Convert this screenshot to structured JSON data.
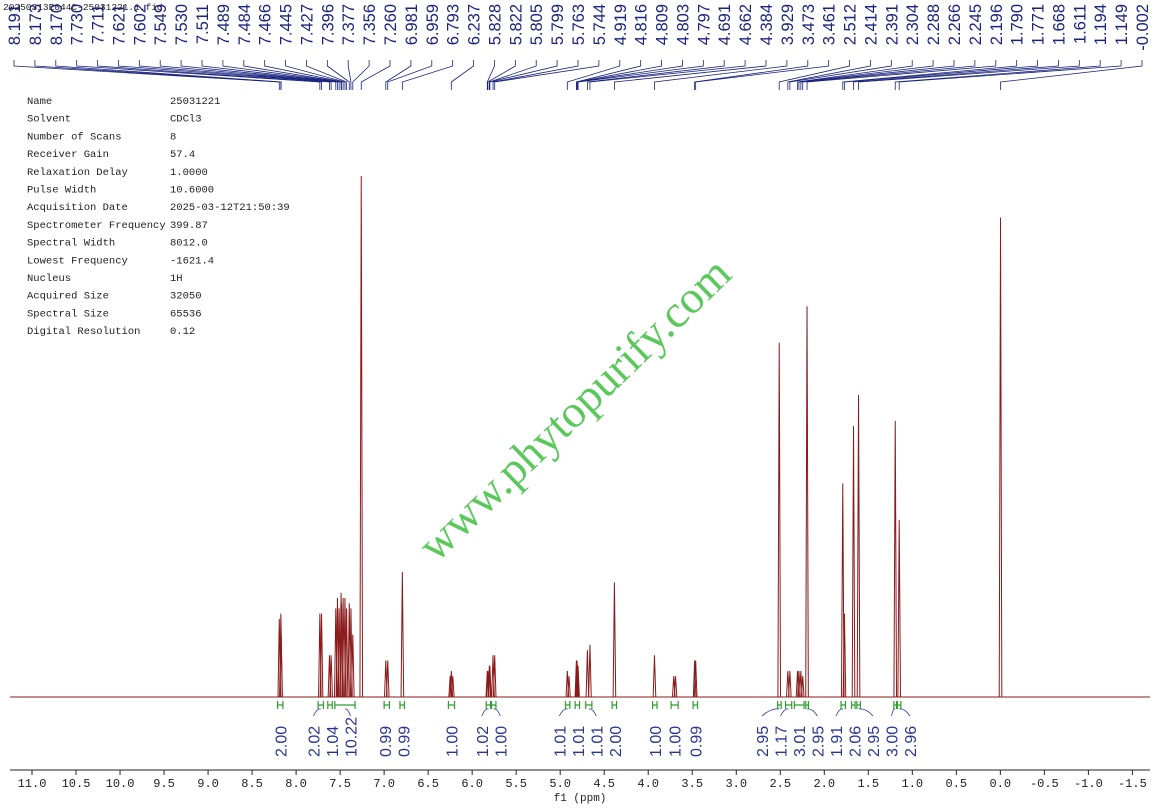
{
  "chart_data": {
    "type": "nmr",
    "file_name": "20250313E044C-25031221.1.fid",
    "x_label": "f1 (ppm)",
    "watermark": "www.phytopurify.com",
    "color": "#8b1a1a",
    "integral_color": "#2e9e2e",
    "xlim": [
      11.25,
      -1.7
    ],
    "ylim": [
      0,
      100
    ],
    "xticks": [
      {
        "value": 11,
        "label": "11.0"
      },
      10.5,
      {
        "value": 10,
        "label": "10.0"
      },
      9.5,
      {
        "value": 9,
        "label": "9.0"
      },
      8.5,
      {
        "value": 8,
        "label": "8.0"
      },
      7.5,
      {
        "value": 7,
        "label": "7.0"
      },
      6.5,
      {
        "value": 6,
        "label": "6.0"
      },
      5.5,
      {
        "value": 5,
        "label": "5.0"
      },
      4.5,
      {
        "value": 4,
        "label": "4.0"
      },
      3.5,
      {
        "value": 3,
        "label": "3.0"
      },
      2.5,
      {
        "value": 2,
        "label": "2.0"
      },
      1.5,
      {
        "value": 1,
        "label": "1.0"
      },
      0.5,
      {
        "value": 0,
        "label": "0.0"
      },
      -0.5,
      {
        "value": -1,
        "label": "-1.0"
      },
      -1.5
    ],
    "parameters": [
      [
        "Name",
        "25031221"
      ],
      [
        "Solvent",
        "CDCl3"
      ],
      [
        "Number of Scans",
        "8"
      ],
      [
        "Receiver Gain",
        "57.4"
      ],
      [
        "Relaxation Delay",
        "1.0000"
      ],
      [
        "Pulse Width",
        "10.6000"
      ],
      [
        "Acquisition Date",
        "2025-03-12T21:50:39"
      ],
      [
        "Spectrometer Frequency",
        "399.87"
      ],
      [
        "Spectral Width",
        "8012.0"
      ],
      [
        "Lowest Frequency",
        "-1621.4"
      ],
      [
        "Nucleus",
        "1H"
      ],
      [
        "Acquired Size",
        "32050"
      ],
      [
        "Spectral Size",
        "65536"
      ],
      [
        "Digital Resolution",
        "0.12"
      ]
    ],
    "peak_labels": [
      8.191,
      8.173,
      {
        "value": 8.17,
        "label": "8.170"
      },
      {
        "value": 7.73,
        "label": "7.730"
      },
      7.711,
      7.621,
      7.602,
      7.549,
      {
        "value": 7.53,
        "label": "7.530"
      },
      7.511,
      7.489,
      7.484,
      7.466,
      7.445,
      7.427,
      7.396,
      7.377,
      7.356,
      {
        "value": 7.26,
        "label": "7.260"
      },
      6.981,
      6.959,
      6.793,
      6.237,
      5.828,
      5.822,
      5.805,
      5.799,
      5.763,
      5.744,
      4.919,
      4.816,
      4.809,
      4.803,
      4.797,
      4.691,
      4.662,
      4.384,
      3.929,
      3.473,
      3.461,
      2.512,
      2.414,
      2.391,
      2.304,
      2.288,
      2.266,
      2.245,
      2.196,
      {
        "value": 1.79,
        "label": "1.790"
      },
      1.771,
      1.668,
      1.611,
      1.194,
      1.149,
      -0.002
    ],
    "signals": [
      {
        "ppm": 8.191,
        "intensity": 15
      },
      {
        "ppm": 8.173,
        "intensity": 16
      },
      {
        "ppm": 8.17,
        "intensity": 12
      },
      {
        "ppm": 7.73,
        "intensity": 16
      },
      {
        "ppm": 7.711,
        "intensity": 16
      },
      {
        "ppm": 7.621,
        "intensity": 8
      },
      {
        "ppm": 7.602,
        "intensity": 8
      },
      {
        "ppm": 7.549,
        "intensity": 17
      },
      {
        "ppm": 7.53,
        "intensity": 19
      },
      {
        "ppm": 7.511,
        "intensity": 17
      },
      {
        "ppm": 7.489,
        "intensity": 20
      },
      {
        "ppm": 7.484,
        "intensity": 18
      },
      {
        "ppm": 7.466,
        "intensity": 19
      },
      {
        "ppm": 7.445,
        "intensity": 19
      },
      {
        "ppm": 7.427,
        "intensity": 17
      },
      {
        "ppm": 7.396,
        "intensity": 18
      },
      {
        "ppm": 7.377,
        "intensity": 17
      },
      {
        "ppm": 7.356,
        "intensity": 12
      },
      {
        "ppm": 7.26,
        "intensity": 100
      },
      {
        "ppm": 6.981,
        "intensity": 7
      },
      {
        "ppm": 6.959,
        "intensity": 7
      },
      {
        "ppm": 6.793,
        "intensity": 24
      },
      {
        "ppm": 6.25,
        "intensity": 4
      },
      {
        "ppm": 6.237,
        "intensity": 5
      },
      {
        "ppm": 6.22,
        "intensity": 4
      },
      {
        "ppm": 5.828,
        "intensity": 5
      },
      {
        "ppm": 5.822,
        "intensity": 5
      },
      {
        "ppm": 5.805,
        "intensity": 6
      },
      {
        "ppm": 5.799,
        "intensity": 6
      },
      {
        "ppm": 5.763,
        "intensity": 8
      },
      {
        "ppm": 5.744,
        "intensity": 8
      },
      {
        "ppm": 4.919,
        "intensity": 5
      },
      {
        "ppm": 4.9,
        "intensity": 4
      },
      {
        "ppm": 4.816,
        "intensity": 7
      },
      {
        "ppm": 4.809,
        "intensity": 7
      },
      {
        "ppm": 4.803,
        "intensity": 6
      },
      {
        "ppm": 4.797,
        "intensity": 6
      },
      {
        "ppm": 4.691,
        "intensity": 9
      },
      {
        "ppm": 4.662,
        "intensity": 10
      },
      {
        "ppm": 4.384,
        "intensity": 22
      },
      {
        "ppm": 3.929,
        "intensity": 8
      },
      {
        "ppm": 3.71,
        "intensity": 4
      },
      {
        "ppm": 3.69,
        "intensity": 4
      },
      {
        "ppm": 3.473,
        "intensity": 7
      },
      {
        "ppm": 3.461,
        "intensity": 7
      },
      {
        "ppm": 2.512,
        "intensity": 68
      },
      {
        "ppm": 2.414,
        "intensity": 5
      },
      {
        "ppm": 2.391,
        "intensity": 5
      },
      {
        "ppm": 2.304,
        "intensity": 5
      },
      {
        "ppm": 2.288,
        "intensity": 5
      },
      {
        "ppm": 2.266,
        "intensity": 5
      },
      {
        "ppm": 2.245,
        "intensity": 4
      },
      {
        "ppm": 2.196,
        "intensity": 75
      },
      {
        "ppm": 1.79,
        "intensity": 41
      },
      {
        "ppm": 1.771,
        "intensity": 16
      },
      {
        "ppm": 1.668,
        "intensity": 52
      },
      {
        "ppm": 1.611,
        "intensity": 58
      },
      {
        "ppm": 1.194,
        "intensity": 53
      },
      {
        "ppm": 1.149,
        "intensity": 34
      },
      {
        "ppm": -0.002,
        "intensity": 92
      }
    ],
    "integrals": [
      {
        "range": [
          8.21,
          8.15
        ],
        "value": 2,
        "label": "2.00"
      },
      {
        "range": [
          7.75,
          7.69
        ],
        "value": 2.02,
        "label": "2.02"
      },
      {
        "range": [
          7.64,
          7.59
        ],
        "value": 1.04,
        "label": "1.04"
      },
      {
        "range": [
          7.56,
          7.33
        ],
        "value": 10.22,
        "label": "10.22"
      },
      {
        "range": [
          7.0,
          6.94
        ],
        "value": 0.99,
        "label": "0.99"
      },
      {
        "range": [
          6.82,
          6.77
        ],
        "value": 0.99,
        "label": "0.99"
      },
      {
        "range": [
          6.27,
          6.2
        ],
        "value": 1,
        "label": "1.00"
      },
      {
        "range": [
          5.84,
          5.79
        ],
        "value": 1.02,
        "label": "1.02"
      },
      {
        "range": [
          5.78,
          5.73
        ],
        "value": 1,
        "label": "1.00"
      },
      {
        "range": [
          4.94,
          4.89
        ],
        "value": 1.01,
        "label": "1.01"
      },
      {
        "range": [
          4.83,
          4.78
        ],
        "value": 1.01,
        "label": "1.01"
      },
      {
        "range": [
          4.71,
          4.64
        ],
        "value": 1.01,
        "label": "1.01"
      },
      {
        "range": [
          4.41,
          4.36
        ],
        "value": 2,
        "label": "2.00"
      },
      {
        "range": [
          3.95,
          3.9
        ],
        "value": 1,
        "label": "1.00"
      },
      {
        "range": [
          3.74,
          3.66
        ],
        "value": 1,
        "label": "1.00"
      },
      {
        "range": [
          3.49,
          3.44
        ],
        "value": 0.99,
        "label": "0.99"
      },
      {
        "range": [
          2.53,
          2.49
        ],
        "value": 2.95,
        "label": "2.95"
      },
      {
        "range": [
          2.44,
          2.37
        ],
        "value": 1.17,
        "label": "1.17"
      },
      {
        "range": [
          2.34,
          2.23
        ],
        "value": 3.01,
        "label": "3.01"
      },
      {
        "range": [
          2.21,
          2.18
        ],
        "value": 2.95,
        "label": "2.95"
      },
      {
        "range": [
          1.81,
          1.76
        ],
        "value": 1.91,
        "label": "1.91"
      },
      {
        "range": [
          1.69,
          1.65
        ],
        "value": 2.06,
        "label": "2.06"
      },
      {
        "range": [
          1.63,
          1.59
        ],
        "value": 2.95,
        "label": "2.95"
      },
      {
        "range": [
          1.21,
          1.18
        ],
        "value": 3,
        "label": "3.00"
      },
      {
        "range": [
          1.17,
          1.13
        ],
        "value": 2.96,
        "label": "2.96"
      }
    ]
  }
}
